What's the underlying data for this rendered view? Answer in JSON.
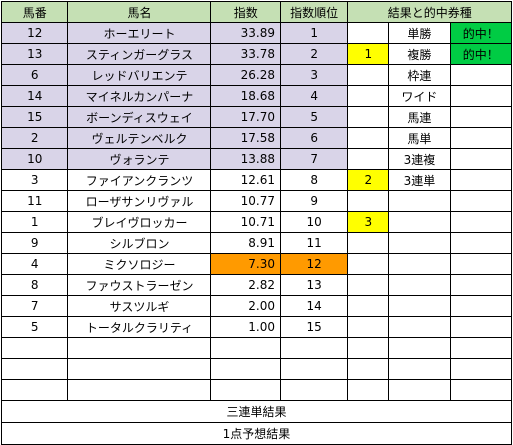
{
  "headers": [
    "馬番",
    "馬名",
    "指数",
    "指数順位",
    "結果と的中券種"
  ],
  "rows": [
    {
      "num": "12",
      "name": "ホーエリート",
      "index": "33.89",
      "rank": "1",
      "res": "",
      "type": "単勝",
      "hit": "的中！",
      "hl": "lav"
    },
    {
      "num": "13",
      "name": "スティンガーグラス",
      "index": "33.78",
      "rank": "2",
      "res": "1",
      "type": "複勝",
      "hit": "的中！",
      "hl": "lav"
    },
    {
      "num": "6",
      "name": "レッドバリエンテ",
      "index": "26.28",
      "rank": "3",
      "res": "",
      "type": "枠連",
      "hit": "",
      "hl": "lav"
    },
    {
      "num": "14",
      "name": "マイネルカンパーナ",
      "index": "18.68",
      "rank": "4",
      "res": "",
      "type": "ワイド",
      "hit": "",
      "hl": "lav"
    },
    {
      "num": "15",
      "name": "ボーンディスウェイ",
      "index": "17.70",
      "rank": "5",
      "res": "",
      "type": "馬連",
      "hit": "",
      "hl": "lav"
    },
    {
      "num": "2",
      "name": "ヴェルテンベルク",
      "index": "17.58",
      "rank": "6",
      "res": "",
      "type": "馬単",
      "hit": "",
      "hl": "lav"
    },
    {
      "num": "10",
      "name": "ヴォランテ",
      "index": "13.88",
      "rank": "7",
      "res": "",
      "type": "3連複",
      "hit": "",
      "hl": "lav"
    },
    {
      "num": "3",
      "name": "ファイアンクランツ",
      "index": "12.61",
      "rank": "8",
      "res": "2",
      "type": "3連単",
      "hit": "",
      "hl": ""
    },
    {
      "num": "11",
      "name": "ローザサンリヴァル",
      "index": "10.77",
      "rank": "9",
      "res": "",
      "type": "",
      "hit": "",
      "hl": ""
    },
    {
      "num": "1",
      "name": "ブレイヴロッカー",
      "index": "10.71",
      "rank": "10",
      "res": "3",
      "type": "",
      "hit": "",
      "hl": ""
    },
    {
      "num": "9",
      "name": "シルブロン",
      "index": "8.91",
      "rank": "11",
      "res": "",
      "type": "",
      "hit": "",
      "hl": ""
    },
    {
      "num": "4",
      "name": "ミクソロジー",
      "index": "7.30",
      "rank": "12",
      "res": "",
      "type": "",
      "hit": "",
      "hl": "orange"
    },
    {
      "num": "8",
      "name": "ファウストラーゼン",
      "index": "2.82",
      "rank": "13",
      "res": "",
      "type": "",
      "hit": "",
      "hl": ""
    },
    {
      "num": "7",
      "name": "サスツルギ",
      "index": "2.00",
      "rank": "14",
      "res": "",
      "type": "",
      "hit": "",
      "hl": ""
    },
    {
      "num": "5",
      "name": "トータルクラリティ",
      "index": "1.00",
      "rank": "15",
      "res": "",
      "type": "",
      "hit": "",
      "hl": ""
    }
  ],
  "empty_rows": 3,
  "footer": [
    "三連単結果",
    "1点予想結果"
  ],
  "colors": {
    "header": "#c5e0b4",
    "highlight": "#d9d4e8",
    "low": "#ff9a00",
    "result": "#ffff00",
    "hit": "#00cc44"
  }
}
